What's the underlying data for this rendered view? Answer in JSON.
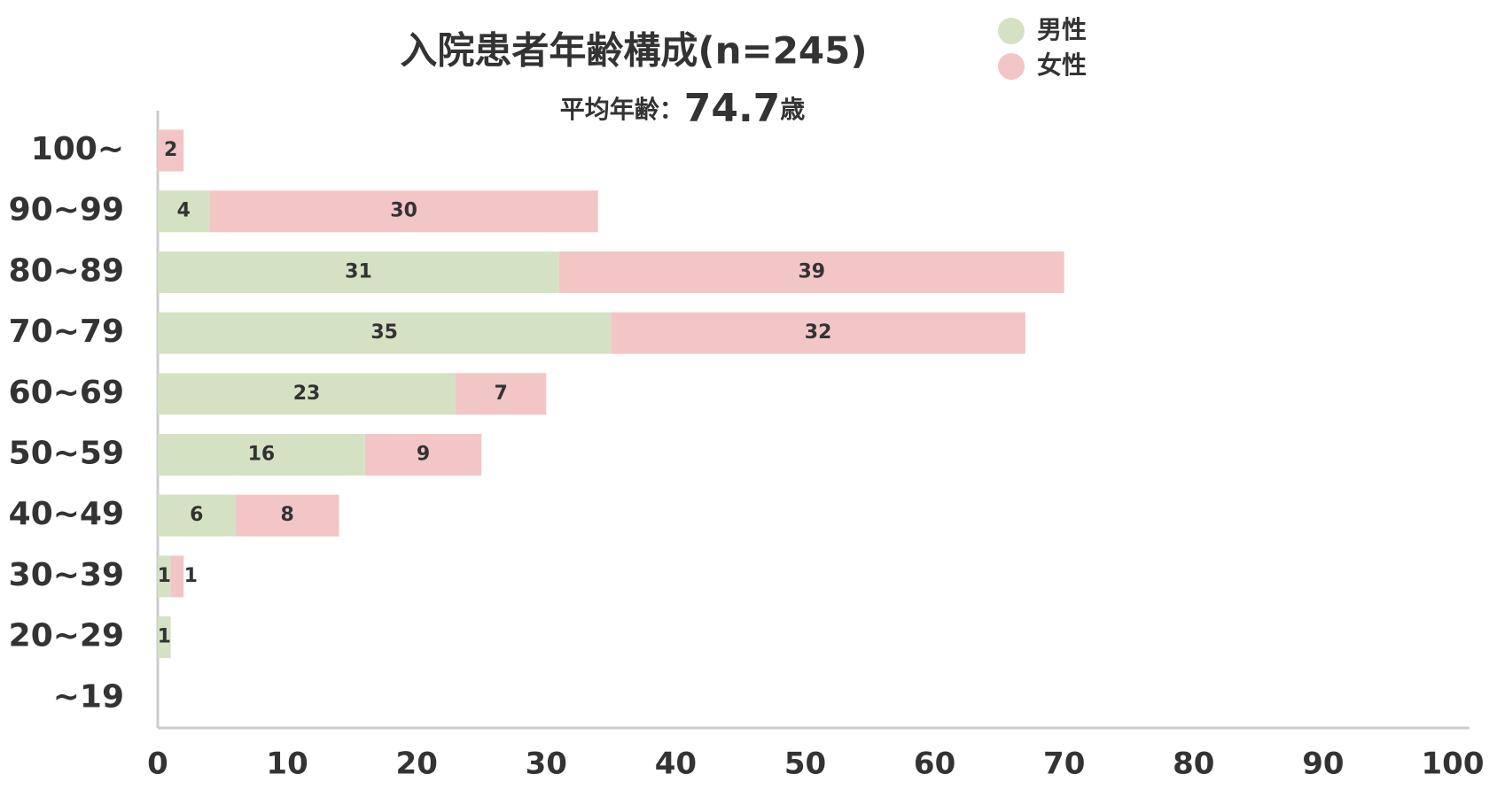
{
  "chart_data": {
    "type": "stacked-barh",
    "title": "入院患者年齢構成(n=245)",
    "subtitle": "平均年齢：",
    "mean_age": "74.7",
    "mean_age_unit": "歳",
    "categories": [
      "100~",
      "90~99",
      "80~89",
      "70~79",
      "60~69",
      "50~59",
      "40~49",
      "30~39",
      "20~29",
      "~19"
    ],
    "series": [
      {
        "name": "男性",
        "color": "#d5e1c3",
        "values": [
          null,
          4,
          31,
          35,
          23,
          16,
          6,
          1,
          1,
          null
        ]
      },
      {
        "name": "女性",
        "color": "#f2c6c4",
        "values": [
          2,
          30,
          39,
          32,
          7,
          9,
          8,
          1,
          null,
          null
        ]
      }
    ],
    "xlim": [
      0,
      100
    ],
    "xticks": [
      0,
      10,
      20,
      30,
      40,
      50,
      60,
      70,
      80,
      90,
      100
    ],
    "legend": "top-right"
  }
}
